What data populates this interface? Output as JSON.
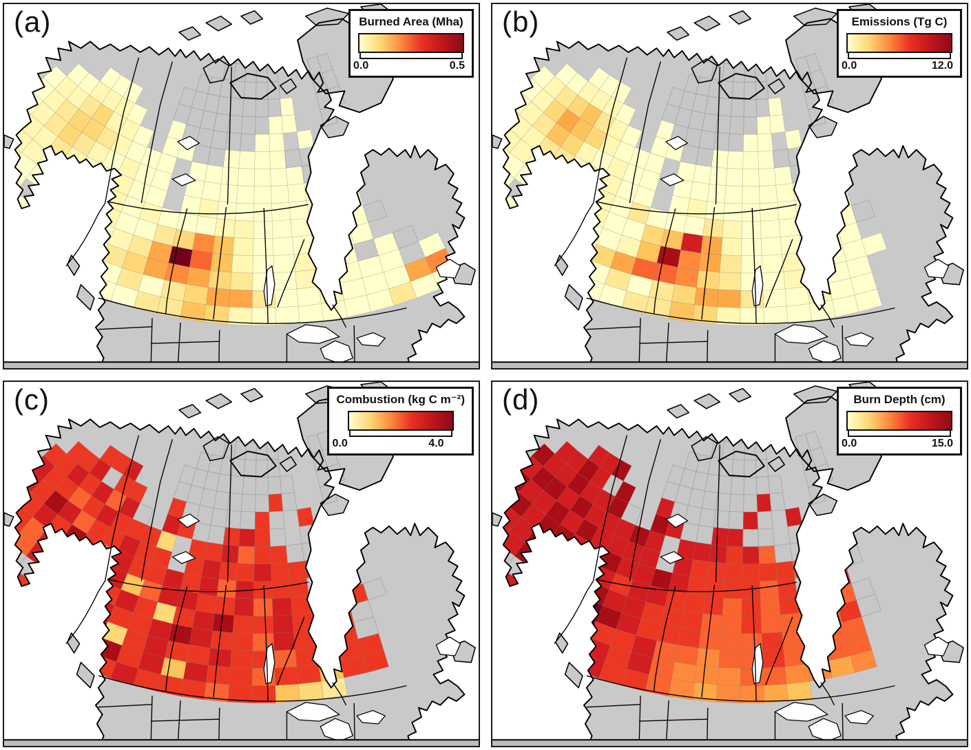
{
  "figure": {
    "background": "#ffffff"
  },
  "colors": {
    "ocean": "#ffffff",
    "land": "#c9c9c9",
    "land_outline": "#000000",
    "no_data_cell": "#c7c7c7",
    "grid_line": "#9e9e9e",
    "border_line": "#000000",
    "bottom_strip": "#bdbdbd"
  },
  "color_ramp": {
    "legend_stops": [
      "#FFFFCC",
      "#FED877",
      "#FD8A3C",
      "#E93123",
      "#C0161B",
      "#8F0A18"
    ],
    "char_map": {
      "0": "#FFFFCC",
      "1": "#FFF7B3",
      "2": "#FEE896",
      "3": "#FED877",
      "4": "#FEC35B",
      "5": "#FDA747",
      "6": "#FD8A3C",
      "7": "#FA6430",
      "8": "#EC3823",
      "9": "#D21E20",
      "a": "#A90D15",
      "b": "#71001E",
      "x": "#C7C7C7"
    }
  },
  "panels": [
    {
      "id": "a",
      "label": "(a)",
      "legend": {
        "title": "Burned Area (Mha)",
        "min": "0.0",
        "max": "0.5"
      },
      "grid": [
        [
          ".............",
          "..xxx........"
        ],
        [
          ".............",
          ".xxxxx...xx.."
        ],
        [
          "............x",
          "xxxxxx...xx.."
        ],
        [
          "...........xx",
          "xxxxxx0..xx.."
        ],
        [
          ".....000...xx",
          "xxxxx00..x..."
        ],
        [
          "...001110..0x",
          "xxxx00.0....."
        ],
        [
          "..01123110.00",
          "xx0000x......"
        ],
        [
          "..0123321000.",
          "0000000x....."
        ],
        [
          ".00123210100.",
          "000000000...."
        ],
        [
          ".00112101100.",
          "0100000000..."
        ],
        [
          "0011101001010",
          "0011000000x.."
        ],
        [
          "001100.001002",
          "3641000000..."
        ],
        [
          ".0010...00125",
          "b74100100x0x."
        ],
        [
          "..00100100235",
          "65320010000.0"
        ],
        [
          "......0018020",
          "2355200100056"
        ],
        [
          ".......00.002",
          "2431000000200"
        ]
      ]
    },
    {
      "id": "b",
      "label": "(b)",
      "legend": {
        "title": "Emissions (Tg C)",
        "min": "0.0",
        "max": "12.0"
      },
      "grid": [
        [
          ".............",
          "..xxx........"
        ],
        [
          ".............",
          ".xxxxx...xx.."
        ],
        [
          "............x",
          "xxxxxx...xx.."
        ],
        [
          "...........xx",
          "xxxxxx0..xx.."
        ],
        [
          ".....000...xx",
          "xxxxx00..x..."
        ],
        [
          "...001110..0x",
          "xxxx00.0....."
        ],
        [
          "..01234210.00",
          "xx0000x......"
        ],
        [
          "..0135431000.",
          "0000000x....."
        ],
        [
          ".00124310100.",
          "000000000...."
        ],
        [
          ".00112202100.",
          "0100000000..."
        ],
        [
          "0011101001020",
          "0021000000x.."
        ],
        [
          "001100.001003",
          "4951000000..."
        ],
        [
          ".0010...00014",
          "a6520010000.."
        ],
        [
          "..00100100357",
          "7632001000..."
        ],
        [
          "......001b020",
          "2355200100..."
        ],
        [
          ".......00.002",
          "2431000000..."
        ]
      ]
    },
    {
      "id": "c",
      "label": "(c)",
      "legend": {
        "title": "Combustion (kg C m⁻²)",
        "min": "0.0",
        "max": "4.0"
      },
      "grid": [
        [
          ".............",
          "..xxx........"
        ],
        [
          ".............",
          ".xxxxx...xx.."
        ],
        [
          "............x",
          "xxxxxx...xx.."
        ],
        [
          "...........xx",
          "xxxxxxx..xx.."
        ],
        [
          ".....889...xx",
          "xxxxx8x..x..."
        ],
        [
          "...889x88..8x",
          "xxxx8x.8....."
        ],
        [
          "..8898979x.98",
          "xx898x.x....."
        ],
        [
          "..9887898883.",
          "889788xx....."
        ],
        [
          ".898a9788988.",
          "89889888x...."
        ],
        [
          ".78898a879889",
          "8979888x8...."
        ],
        [
          "8988799889479",
          "9889798888x.."
        ],
        [
          "898879.898983",
          "89a889888x..."
        ],
        [
          ".889x...89889",
          "a98879888x..."
        ],
        [
          "..89889889389",
          "8898878988..."
        ],
        [
          "......8898a89",
          "4988788488..."
        ],
        [
          ".......88.898",
          "88788432....."
        ]
      ]
    },
    {
      "id": "d",
      "label": "(d)",
      "legend": {
        "title": "Burn Depth (cm)",
        "min": "0.0",
        "max": "15.0"
      },
      "grid": [
        [
          ".............",
          "..xxx........"
        ],
        [
          ".............",
          ".xxxxx...xx.."
        ],
        [
          "............x",
          "xxxxxx...xx.."
        ],
        [
          "...........xx",
          "xxxxxxx..xx.."
        ],
        [
          ".....99a...xx",
          "xxxxx9x..x..."
        ],
        [
          "...99a9xa..9x",
          "xxxx9x.9....."
        ],
        [
          "..a99a99ax.a9",
          "xx99xx.x....."
        ],
        [
          "..9aa9a999a9.",
          "999897x..xx.."
        ],
        [
          ".9a99a9a9999.",
          "98888887x.x.."
        ],
        [
          ".99a9aa99a99a",
          "9888878x78..."
        ],
        [
          "99a99a9999899",
          "8887878877x.."
        ],
        [
          "9a999a.99a998",
          "8877877778x.."
        ],
        [
          ".9a9x...9ba98",
          "8877787777..."
        ],
        [
          "..99a998ba889",
          "7767787677..."
        ],
        [
          "......99a9989",
          "7666776656..."
        ],
        [
          ".......99.988",
          "7656654......"
        ]
      ]
    }
  ]
}
